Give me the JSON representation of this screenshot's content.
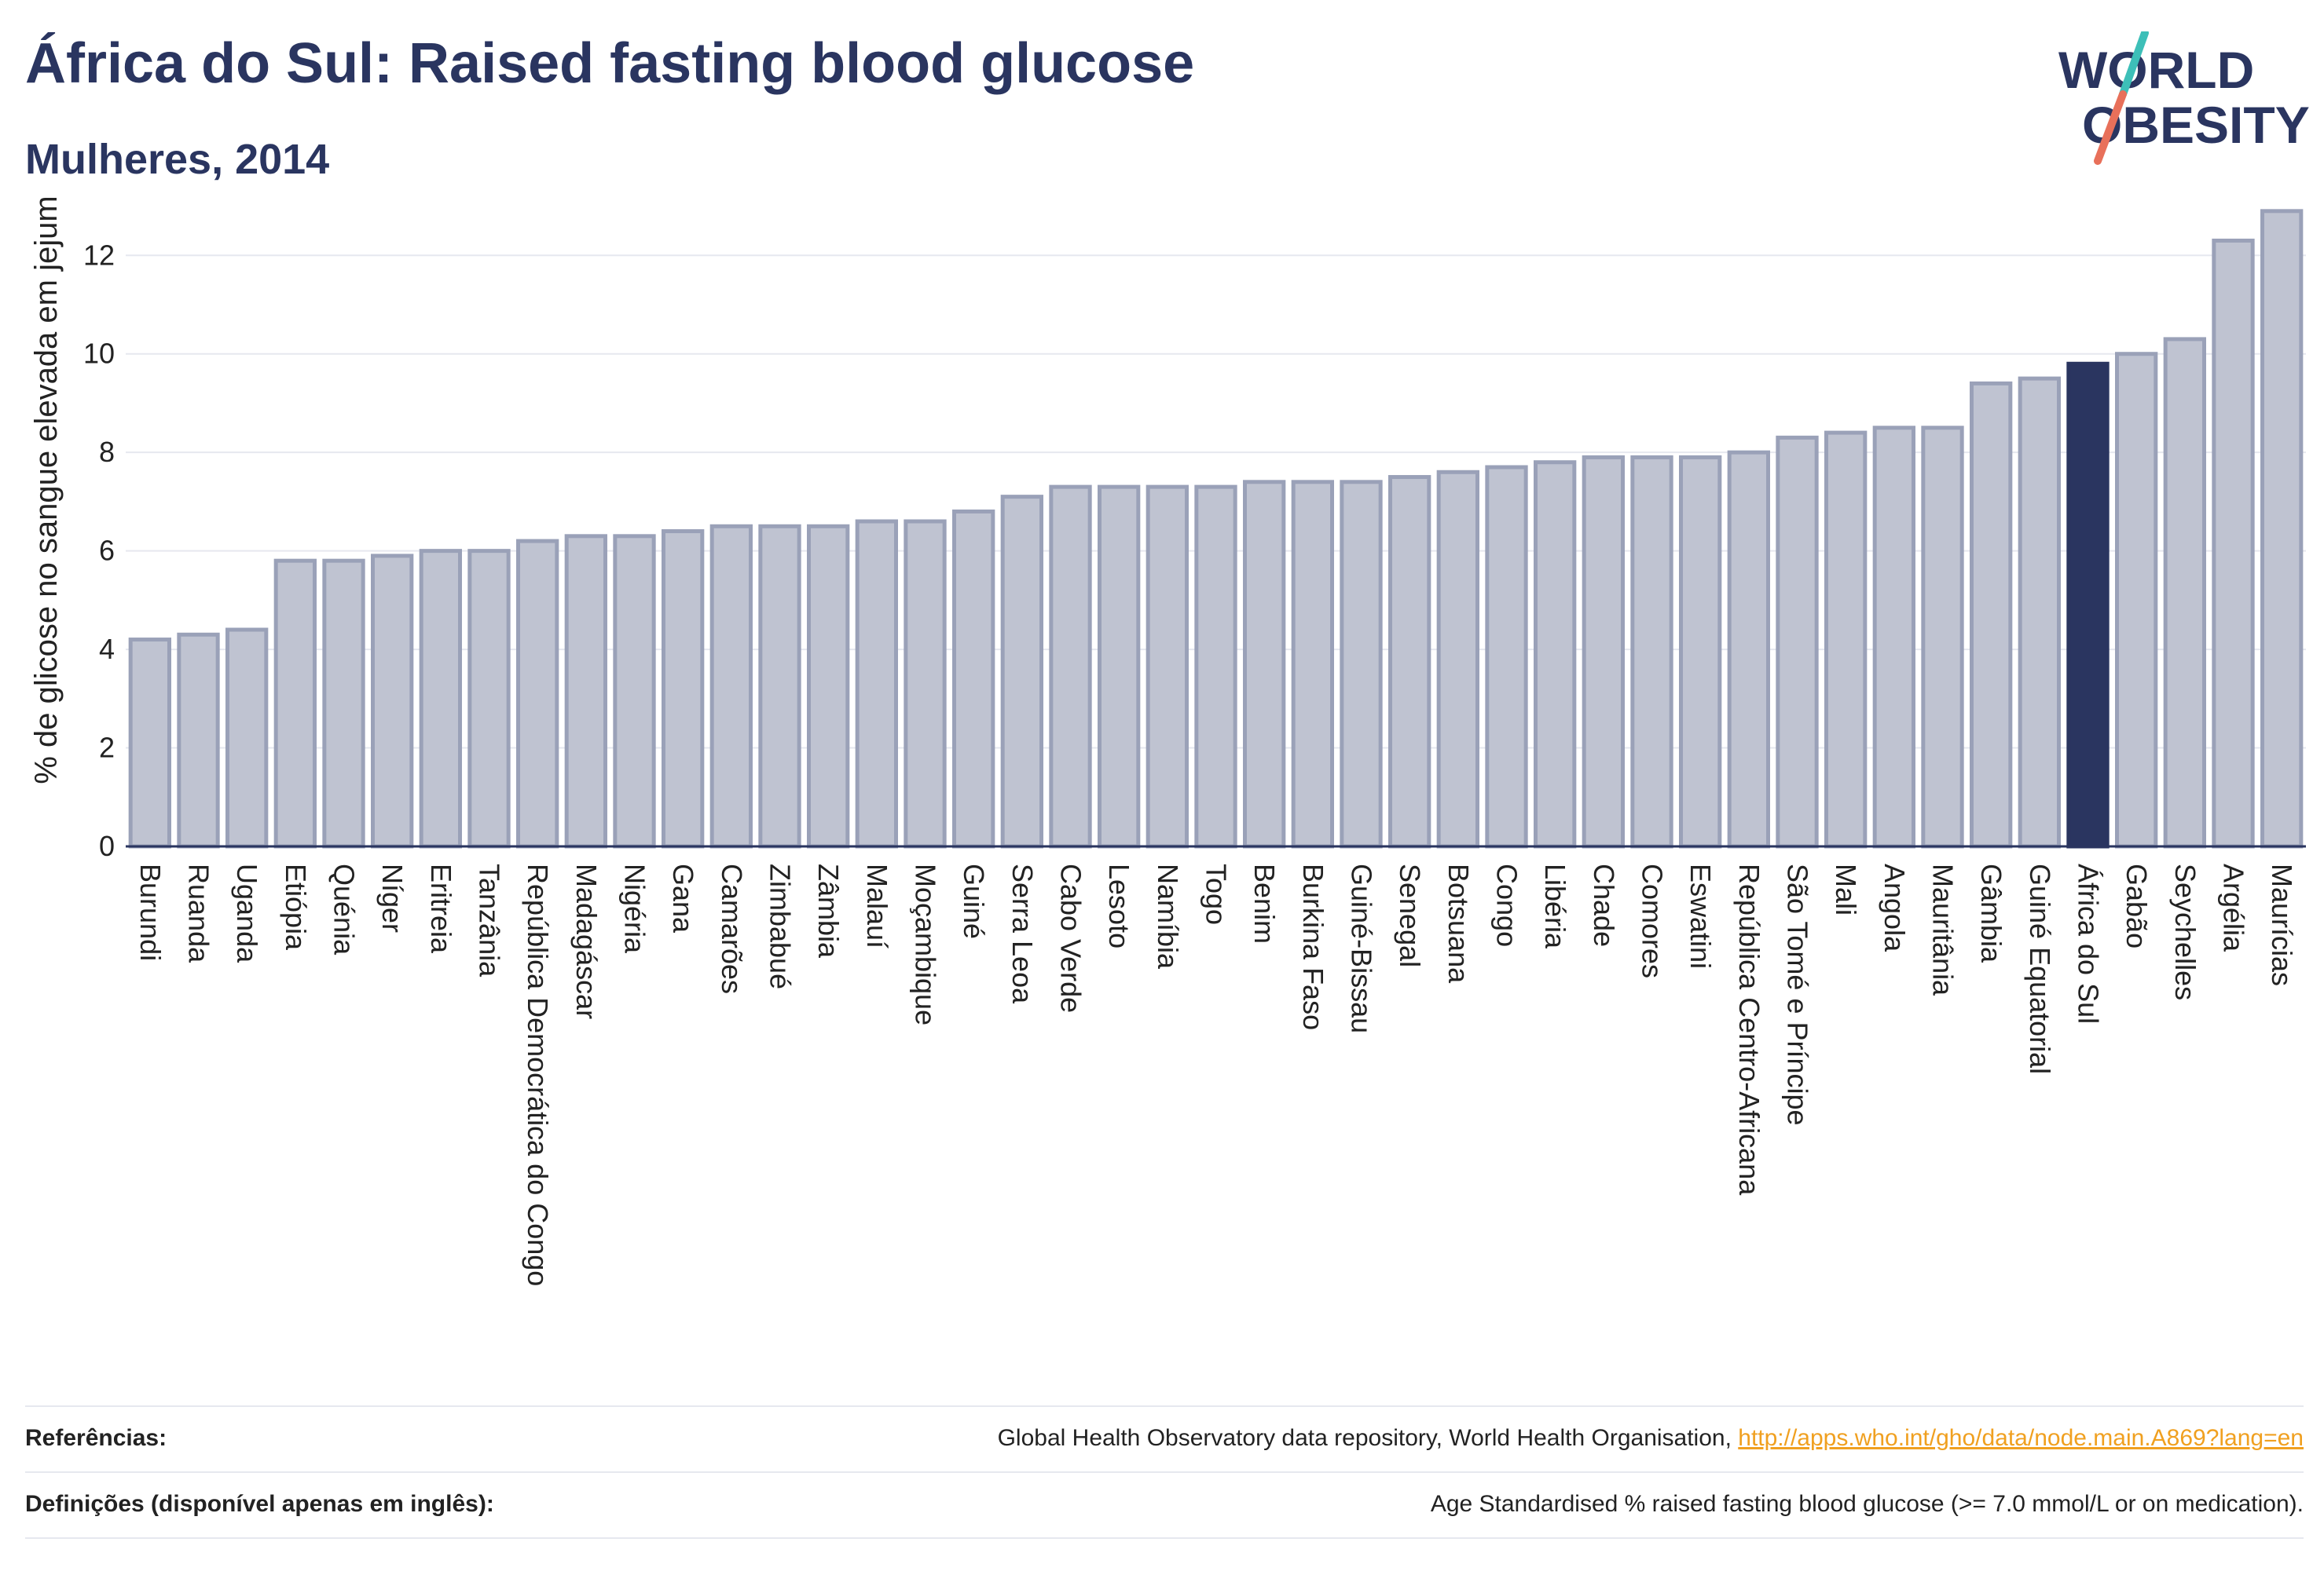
{
  "header": {
    "title": "África do Sul: Raised fasting blood glucose",
    "subtitle": "Mulheres, 2014"
  },
  "logo": {
    "line1": "WORLD",
    "line2": "OBESITY",
    "slash_colors": [
      "#3dbfb8",
      "#e8705a"
    ]
  },
  "colors": {
    "bar_fill": "#bfc3d1",
    "bar_stroke": "#9aa1b8",
    "highlight": "#2a3560",
    "grid": "#e6e8ef"
  },
  "chart_data": {
    "type": "bar",
    "ylabel": "% de glicose no sangue elevada em jejum",
    "xlabel": "",
    "ylim": [
      0,
      13.2
    ],
    "yticks": [
      0,
      2,
      4,
      6,
      8,
      10,
      12
    ],
    "grid": true,
    "highlight": "África do Sul",
    "categories": [
      "Burundi",
      "Ruanda",
      "Uganda",
      "Etiópia",
      "Quénia",
      "Níger",
      "Eritreia",
      "Tanzânia",
      "República Democrática do Congo",
      "Madagáscar",
      "Nigéria",
      "Gana",
      "Camarões",
      "Zimbabué",
      "Zâmbia",
      "Malauí",
      "Moçambique",
      "Guiné",
      "Serra Leoa",
      "Cabo Verde",
      "Lesoto",
      "Namíbia",
      "Togo",
      "Benim",
      "Burkina Faso",
      "Guiné-Bissau",
      "Senegal",
      "Botsuana",
      "Congo",
      "Libéria",
      "Chade",
      "Comores",
      "Eswatini",
      "República Centro-Africana",
      "São Tomé e Príncipe",
      "Mali",
      "Angola",
      "Mauritânia",
      "Gâmbia",
      "Guiné Equatorial",
      "África do Sul",
      "Gabão",
      "Seychelles",
      "Argélia",
      "Maurícias"
    ],
    "values": [
      4.2,
      4.3,
      4.4,
      5.8,
      5.8,
      5.9,
      6.0,
      6.0,
      6.2,
      6.3,
      6.3,
      6.4,
      6.5,
      6.5,
      6.5,
      6.6,
      6.6,
      6.8,
      7.1,
      7.3,
      7.3,
      7.3,
      7.3,
      7.4,
      7.4,
      7.4,
      7.5,
      7.6,
      7.7,
      7.8,
      7.9,
      7.9,
      7.9,
      8.0,
      8.3,
      8.4,
      8.5,
      8.5,
      9.4,
      9.5,
      9.8,
      10.0,
      10.3,
      12.3,
      12.9
    ]
  },
  "footer": {
    "references_label": "Referências:",
    "references_text": "Global Health Observatory data repository, World Health Organisation, ",
    "references_link": "http://apps.who.int/gho/data/node.main.A869?lang=en",
    "definitions_label": "Definições (disponível apenas em inglês):",
    "definitions_text": "Age Standardised % raised fasting blood glucose (>= 7.0 mmol/L or on medication)."
  }
}
